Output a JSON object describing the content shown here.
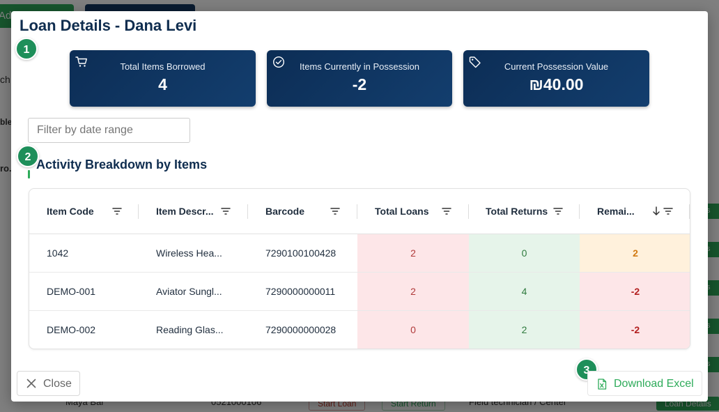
{
  "background": {
    "add_button_label": "Ad",
    "left_fragments": [
      "ch",
      "ble",
      "ro."
    ],
    "right_button_label": "s",
    "bottom_row": {
      "name": "Maya Bar",
      "phone": "0521000106",
      "start_loan": "Start Loan",
      "start_return": "Start Return",
      "role": "Field technician / Center",
      "loan_details": "Loan Details"
    }
  },
  "modal": {
    "title": "Loan Details - Dana Levi",
    "steps": [
      "1",
      "2",
      "3"
    ],
    "stats": [
      {
        "icon": "cart-icon",
        "label": "Total Items Borrowed",
        "value": "4"
      },
      {
        "icon": "check-circle-icon",
        "label": "Items Currently in Possession",
        "value": "-2"
      },
      {
        "icon": "tag-icon",
        "label": "Current Possession Value",
        "value": "₪40.00"
      }
    ],
    "date_filter_placeholder": "Filter by date range",
    "section_title": "Activity Breakdown by Items",
    "table": {
      "columns": [
        "Item Code",
        "Item Descr...",
        "Barcode",
        "Total Loans",
        "Total Returns",
        "Remai..."
      ],
      "rows": [
        {
          "item_code": "1042",
          "description": "Wireless Hea...",
          "barcode": "7290100100428",
          "loans": "2",
          "returns": "0",
          "remaining": "2"
        },
        {
          "item_code": "DEMO-001",
          "description": "Aviator Sungl...",
          "barcode": "7290000000011",
          "loans": "2",
          "returns": "4",
          "remaining": "-2"
        },
        {
          "item_code": "DEMO-002",
          "description": "Reading Glas...",
          "barcode": "7290000000028",
          "loans": "0",
          "returns": "2",
          "remaining": "-2"
        }
      ]
    },
    "close_label": "Close",
    "download_label": "Download Excel"
  }
}
